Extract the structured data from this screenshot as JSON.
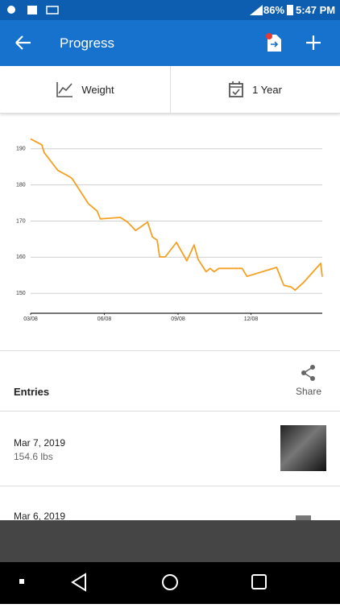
{
  "status_bar": {
    "battery": "86%",
    "time": "5:47 PM"
  },
  "app_bar": {
    "title": "Progress"
  },
  "tabs": [
    "Weight",
    "1 Year"
  ],
  "chart_data": {
    "type": "line",
    "x": [
      0,
      14,
      17,
      34,
      49,
      52,
      72,
      83,
      87,
      112,
      121,
      131,
      146,
      152,
      158,
      161,
      168,
      182,
      195,
      204,
      209,
      219,
      224,
      229,
      235,
      264,
      270,
      307,
      316,
      325,
      330,
      341,
      362,
      364
    ],
    "series": [
      {
        "color": "#f5a023",
        "values": [
          192.7,
          191.1,
          188.9,
          184.0,
          182.2,
          181.7,
          174.8,
          172.8,
          170.6,
          171.0,
          169.7,
          167.4,
          169.7,
          165.6,
          164.7,
          160.1,
          160.1,
          164.1,
          159.0,
          163.4,
          159.4,
          156.0,
          156.9,
          156.0,
          156.9,
          156.9,
          154.7,
          157.2,
          152.2,
          151.8,
          150.9,
          153.1,
          158.3,
          154.6
        ]
      }
    ],
    "xlim": [
      0,
      364
    ],
    "xticks": [
      {
        "value": 0,
        "label": "03/08"
      },
      {
        "value": 92,
        "label": "06/08"
      },
      {
        "value": 184,
        "label": "09/08"
      },
      {
        "value": 275,
        "label": "12/08"
      }
    ],
    "ylim": [
      144.5,
      195.5
    ],
    "yticks": [
      150,
      160,
      170,
      180,
      190
    ],
    "grid": true
  },
  "entries": {
    "title": "Entries",
    "share": "Share",
    "items": [
      {
        "date": "Mar 7, 2019",
        "weight": "154.6 lbs"
      },
      {
        "date": "Mar 6, 2019"
      }
    ]
  }
}
